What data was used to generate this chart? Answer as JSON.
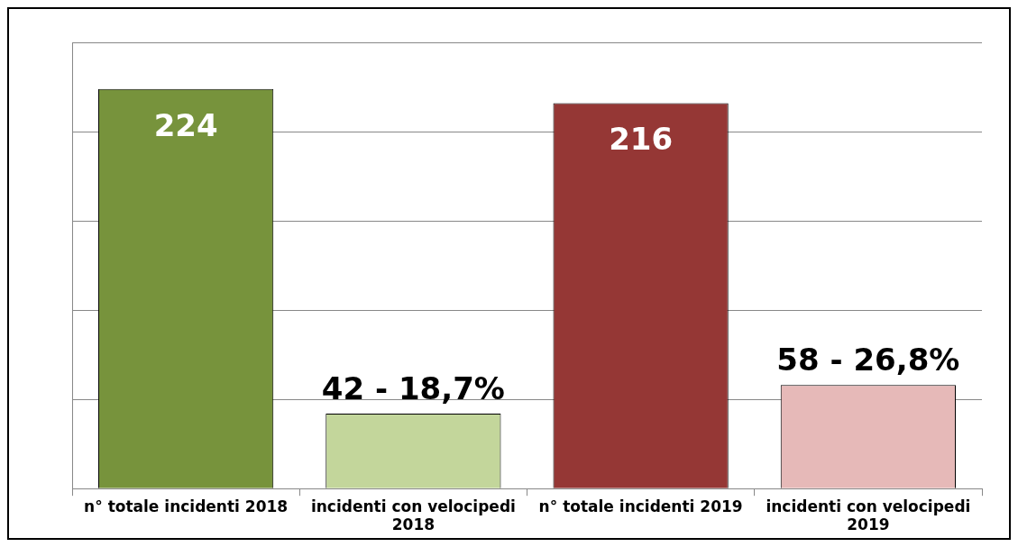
{
  "chart_data": {
    "type": "bar",
    "categories": [
      "n° totale incidenti 2018",
      "incidenti con velocipedi 2018",
      "n° totale incidenti 2019",
      "incidenti con velocipedi 2019"
    ],
    "values": [
      224,
      42,
      216,
      58
    ],
    "colors": [
      "#77933c",
      "#c3d69b",
      "#953735",
      "#e6b9b8"
    ],
    "value_labels": [
      "224",
      "42 - 18,7%",
      "216",
      "58 - 26,8%"
    ],
    "ylim": [
      0,
      250
    ],
    "yticks": [
      {
        "value": 0,
        "label": null
      },
      {
        "value": 50,
        "label": null
      },
      {
        "value": 100,
        "label": null
      },
      {
        "value": 150,
        "label": null
      },
      {
        "value": 200,
        "label": null
      },
      {
        "value": 250,
        "label": null
      }
    ],
    "grid": "y",
    "legend": false
  }
}
